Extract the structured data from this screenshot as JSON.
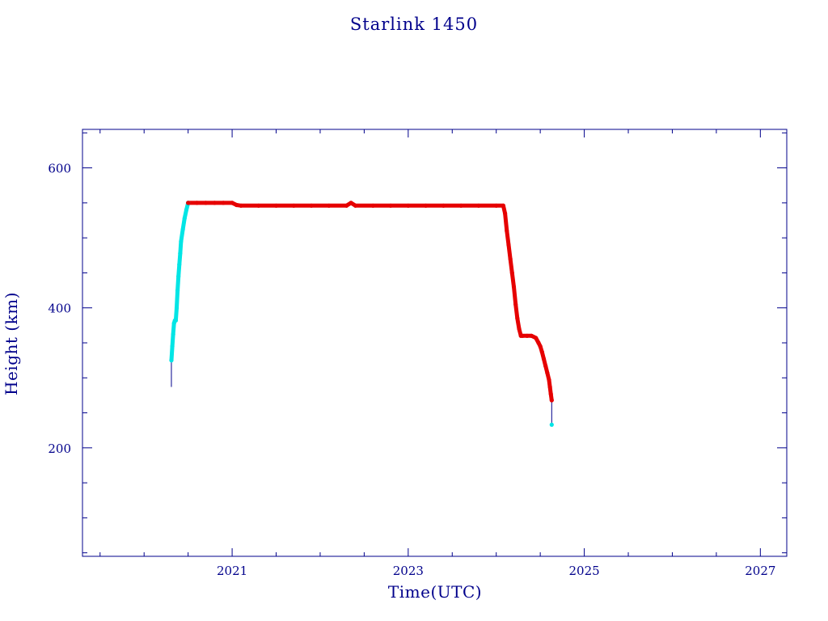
{
  "chart_data": {
    "type": "scatter",
    "title": "Starlink 1450",
    "xlabel": "Time(UTC)",
    "ylabel": "Height (km)",
    "xlim": [
      2019.3,
      2027.3
    ],
    "ylim": [
      45,
      655
    ],
    "x_ticks": [
      2021,
      2023,
      2025,
      2027
    ],
    "y_ticks": [
      200,
      400,
      600
    ],
    "grid": false,
    "colors": {
      "axis": "#00008b",
      "series_raising": "#00e5e5",
      "series_operational": "#e60000",
      "connector": "#00008b"
    },
    "series": [
      {
        "x": [
          2020.31,
          2020.32,
          2020.33,
          2020.34,
          2020.35,
          2020.36,
          2020.37,
          2020.38,
          2020.39,
          2020.4,
          2020.41,
          2020.42,
          2020.44,
          2020.46,
          2020.48,
          2020.5,
          2024.63
        ],
        "y": [
          325,
          345,
          362,
          378,
          382,
          382,
          400,
          425,
          445,
          462,
          478,
          495,
          512,
          528,
          540,
          550,
          233
        ]
      },
      {
        "x": [
          2020.5,
          2020.6,
          2020.7,
          2020.8,
          2020.9,
          2021.0,
          2021.05,
          2021.1,
          2021.3,
          2021.5,
          2021.7,
          2021.9,
          2022.1,
          2022.3,
          2022.35,
          2022.4,
          2022.6,
          2022.8,
          2023.0,
          2023.2,
          2023.4,
          2023.6,
          2023.8,
          2024.0,
          2024.08,
          2024.1,
          2024.12,
          2024.14,
          2024.16,
          2024.18,
          2024.2,
          2024.22,
          2024.24,
          2024.26,
          2024.28,
          2024.3,
          2024.35,
          2024.4,
          2024.45,
          2024.48,
          2024.5,
          2024.52,
          2024.54,
          2024.56,
          2024.58,
          2024.6,
          2024.61,
          2024.62,
          2024.63
        ],
        "y": [
          550,
          550,
          550,
          550,
          550,
          550,
          547,
          546,
          546,
          546,
          546,
          546,
          546,
          546,
          550,
          546,
          546,
          546,
          546,
          546,
          546,
          546,
          546,
          546,
          546,
          535,
          510,
          490,
          470,
          450,
          430,
          405,
          385,
          370,
          360,
          360,
          360,
          360,
          357,
          350,
          345,
          337,
          327,
          317,
          307,
          297,
          287,
          277,
          268
        ]
      }
    ]
  }
}
